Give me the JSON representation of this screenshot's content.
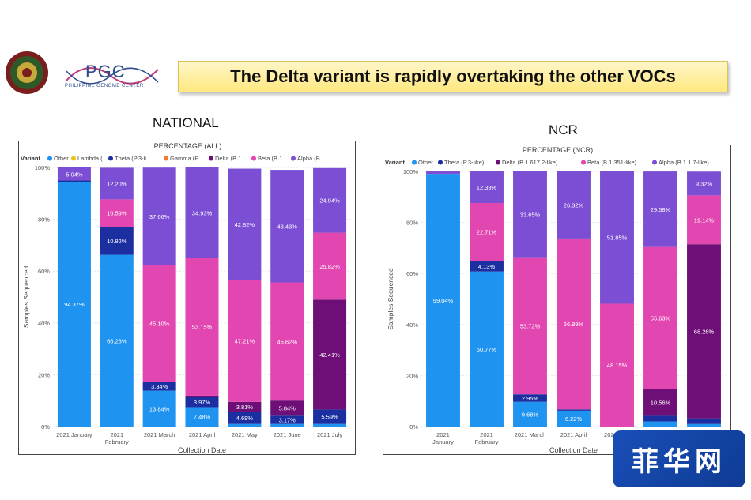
{
  "header": {
    "title": "The Delta variant is rapidly overtaking the other VOCs",
    "pgc_logo_text": "PGC",
    "pgc_logo_subtext": "PHILIPPINE GENOME CENTER"
  },
  "sections": {
    "national_title": "NATIONAL",
    "ncr_title": "NCR"
  },
  "colors": {
    "Other": "#1f93f0",
    "Lambda": "#e8c31c",
    "Theta": "#1c2fa0",
    "Gamma": "#f07a2e",
    "Delta": "#6d0f77",
    "Beta": "#e246b0",
    "Alpha": "#7b4ed3"
  },
  "watermark": "菲华网",
  "chart_data": [
    {
      "type": "bar",
      "stacked": true,
      "title": "PERCENTAGE (ALL)",
      "xlabel": "Collection Date",
      "ylabel": "Samples Sequenced",
      "ylim": [
        0,
        100
      ],
      "yticks": [
        "0%",
        "20%",
        "40%",
        "60%",
        "80%",
        "100%"
      ],
      "legend_title": "Variant",
      "legend": [
        "Other",
        "Lambda (...",
        "Theta (P.3-li...",
        "Gamma (P....",
        "Delta (B.1....",
        "Beta (B.1....",
        "Alpha (B...."
      ],
      "categories": [
        [
          "2021 January"
        ],
        [
          "2021",
          "February"
        ],
        [
          "2021 March"
        ],
        [
          "2021 April"
        ],
        [
          "2021 May"
        ],
        [
          "2021 June"
        ],
        [
          "2021 July"
        ]
      ],
      "series": [
        {
          "name": "Other",
          "key": "Other",
          "values": [
            94.37,
            66.28,
            13.84,
            7.48,
            1.0,
            1.0,
            1.0
          ],
          "labels": [
            "94.37%",
            "66.28%",
            "13.84%",
            "7.48%",
            "",
            "",
            ""
          ]
        },
        {
          "name": "Theta",
          "key": "Theta",
          "values": [
            0.59,
            10.82,
            3.34,
            3.97,
            4.69,
            3.17,
            5.59
          ],
          "labels": [
            "",
            "10.82%",
            "3.34%",
            "3.97%",
            "4.69%",
            "3.17%",
            "5.59%"
          ]
        },
        {
          "name": "Delta",
          "key": "Delta",
          "values": [
            0,
            0,
            0,
            0.47,
            3.81,
            5.84,
            42.41
          ],
          "labels": [
            "",
            "",
            "",
            "",
            "3.81%",
            "5.84%",
            "42.41%"
          ]
        },
        {
          "name": "Beta",
          "key": "Beta",
          "values": [
            0,
            10.59,
            45.1,
            53.15,
            47.21,
            45.62,
            25.82
          ],
          "labels": [
            "",
            "10.59%",
            "45.10%",
            "53.15%",
            "47.21%",
            "45.62%",
            "25.82%"
          ]
        },
        {
          "name": "Alpha",
          "key": "Alpha",
          "values": [
            5.04,
            12.2,
            37.66,
            34.93,
            42.82,
            43.43,
            24.94
          ],
          "labels": [
            "5.04%",
            "12.20%",
            "37.66%",
            "34.93%",
            "42.82%",
            "43.43%",
            "24.94%"
          ]
        }
      ]
    },
    {
      "type": "bar",
      "stacked": true,
      "title": "PERCENTAGE (NCR)",
      "xlabel": "Collection Date",
      "ylabel": "Samples Sequenced",
      "ylim": [
        0,
        100
      ],
      "yticks": [
        "0%",
        "20%",
        "40%",
        "60%",
        "80%",
        "100%"
      ],
      "legend_title": "Variant",
      "legend": [
        "Other",
        "Theta (P.3-like)",
        "Delta (B.1.617.2-like)",
        "Beta (B.1.351-like)",
        "Alpha (B.1.1.7-like)"
      ],
      "categories": [
        [
          "2021",
          "January"
        ],
        [
          "2021",
          "February"
        ],
        [
          "2021 March"
        ],
        [
          "2021 April"
        ],
        [
          "2021 May"
        ],
        [
          "2021 June"
        ],
        [
          "2021 July"
        ]
      ],
      "series": [
        {
          "name": "Other",
          "key": "Other",
          "values": [
            99.04,
            60.77,
            9.68,
            6.22,
            0,
            2.0,
            1.0
          ],
          "labels": [
            "99.04%",
            "60.77%",
            "9.68%",
            "6.22%",
            "",
            "",
            ""
          ]
        },
        {
          "name": "Theta",
          "key": "Theta",
          "values": [
            0,
            4.13,
            2.95,
            0.5,
            0,
            2.2,
            2.2
          ],
          "labels": [
            "",
            "4.13%",
            "2.95%",
            "",
            "",
            "",
            ""
          ]
        },
        {
          "name": "Delta",
          "key": "Delta",
          "values": [
            0,
            0,
            0,
            0,
            0,
            10.56,
            68.26
          ],
          "labels": [
            "",
            "",
            "",
            "",
            "",
            "10.56%",
            "68.26%"
          ]
        },
        {
          "name": "Beta",
          "key": "Beta",
          "values": [
            0,
            22.71,
            53.72,
            66.99,
            48.15,
            55.63,
            19.14
          ],
          "labels": [
            "",
            "22.71%",
            "53.72%",
            "66.99%",
            "48.15%",
            "55.63%",
            "19.14%"
          ]
        },
        {
          "name": "Alpha",
          "key": "Alpha",
          "values": [
            0.96,
            12.39,
            33.65,
            26.32,
            51.85,
            29.58,
            9.32
          ],
          "labels": [
            "",
            "12.39%",
            "33.65%",
            "26.32%",
            "51.85%",
            "29.58%",
            "9.32%"
          ]
        }
      ]
    }
  ]
}
